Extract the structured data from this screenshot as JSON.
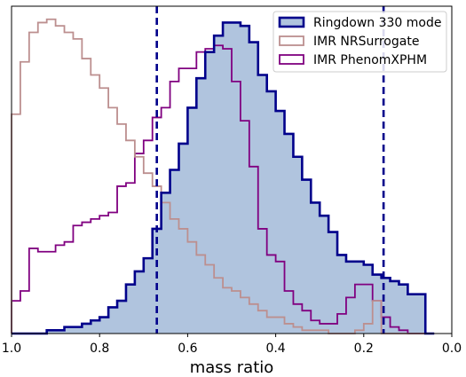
{
  "chart_data": {
    "type": "histogram",
    "title": "",
    "xlabel": "mass ratio",
    "ylabel": "",
    "xlim": [
      1.0,
      0.0
    ],
    "ylim": [
      0,
      1.0
    ],
    "x_ticks": [
      "1.0",
      "0.8",
      "0.6",
      "0.4",
      "0.2",
      "0.0"
    ],
    "x_tick_values": [
      1.0,
      0.8,
      0.6,
      0.4,
      0.2,
      0.0
    ],
    "grid": false,
    "legend_position": "top-right",
    "bin_edges": [
      1.0,
      0.98,
      0.96,
      0.94,
      0.92,
      0.9,
      0.88,
      0.86,
      0.84,
      0.82,
      0.8,
      0.78,
      0.76,
      0.74,
      0.72,
      0.7,
      0.68,
      0.66,
      0.64,
      0.62,
      0.6,
      0.58,
      0.56,
      0.54,
      0.52,
      0.5,
      0.48,
      0.46,
      0.44,
      0.42,
      0.4,
      0.38,
      0.36,
      0.34,
      0.32,
      0.3,
      0.28,
      0.26,
      0.24,
      0.22,
      0.2,
      0.18,
      0.16,
      0.14,
      0.12,
      0.1,
      0.08,
      0.06,
      0.04
    ],
    "vlines": [
      0.67,
      0.155
    ],
    "series": [
      {
        "name": "Ringdown 330 mode",
        "color": "#00008b",
        "fill": "#b0c4de",
        "filled": true,
        "values": [
          0.0,
          0.0,
          0.0,
          0.0,
          0.01,
          0.01,
          0.02,
          0.02,
          0.03,
          0.04,
          0.05,
          0.08,
          0.1,
          0.15,
          0.19,
          0.23,
          0.32,
          0.43,
          0.5,
          0.58,
          0.69,
          0.78,
          0.86,
          0.91,
          0.95,
          0.95,
          0.94,
          0.89,
          0.79,
          0.74,
          0.68,
          0.61,
          0.54,
          0.47,
          0.4,
          0.36,
          0.31,
          0.24,
          0.22,
          0.22,
          0.21,
          0.18,
          0.17,
          0.16,
          0.15,
          0.12,
          0.12,
          0.0
        ],
        "last_edge": 0.04
      },
      {
        "name": "IMR NRSurrogate",
        "color": "#bc8f8f",
        "fill": "none",
        "filled": false,
        "values": [
          0.67,
          0.83,
          0.92,
          0.95,
          0.96,
          0.94,
          0.92,
          0.9,
          0.84,
          0.79,
          0.75,
          0.69,
          0.64,
          0.59,
          0.54,
          0.49,
          0.45,
          0.4,
          0.35,
          0.32,
          0.28,
          0.24,
          0.21,
          0.17,
          0.14,
          0.13,
          0.11,
          0.09,
          0.07,
          0.05,
          0.05,
          0.03,
          0.02,
          0.01,
          0.01,
          0.01,
          0.0,
          0.0,
          0.0,
          0.01,
          0.03,
          0.1,
          0.0,
          0.0,
          0.0,
          0.0,
          0.0,
          0.0
        ],
        "last_edge": 0.04
      },
      {
        "name": "IMR PhenomXPHM",
        "color": "#800080",
        "fill": "none",
        "filled": false,
        "values": [
          0.1,
          0.13,
          0.26,
          0.25,
          0.25,
          0.27,
          0.28,
          0.33,
          0.34,
          0.35,
          0.36,
          0.37,
          0.45,
          0.46,
          0.55,
          0.59,
          0.66,
          0.69,
          0.77,
          0.81,
          0.81,
          0.86,
          0.87,
          0.88,
          0.87,
          0.77,
          0.65,
          0.51,
          0.32,
          0.24,
          0.22,
          0.13,
          0.09,
          0.07,
          0.04,
          0.03,
          0.03,
          0.06,
          0.11,
          0.15,
          0.15,
          0.1,
          0.05,
          0.02,
          0.01,
          0.0,
          0.0,
          0.0
        ],
        "last_edge": 0.04
      }
    ]
  }
}
